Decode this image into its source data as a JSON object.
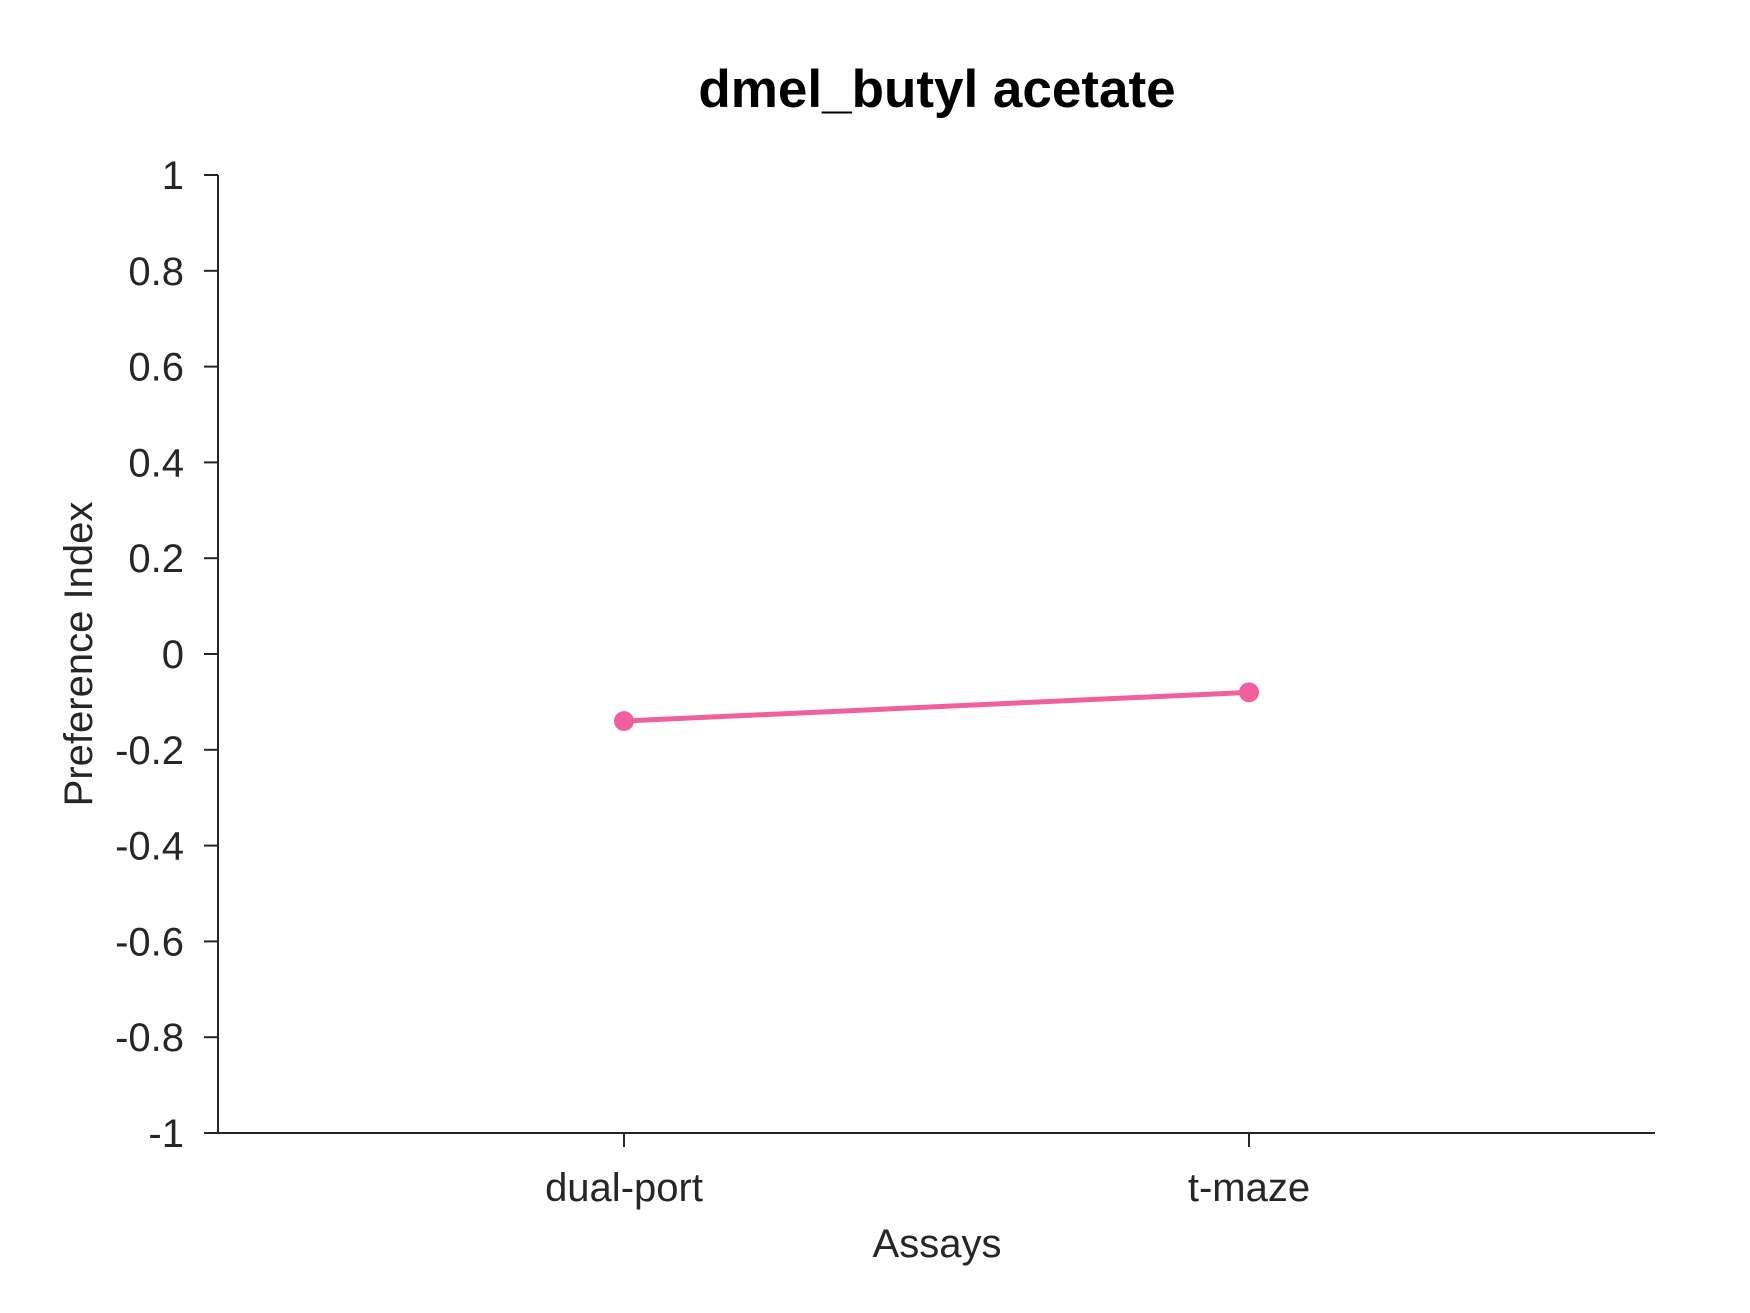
{
  "chart_data": {
    "type": "line",
    "title": "dmel_butyl acetate",
    "xlabel": "Assays",
    "ylabel": "Preference Index",
    "categories": [
      "dual-port",
      "t-maze"
    ],
    "series": [
      {
        "values": [
          -0.14,
          -0.08
        ],
        "color": "#f0609e"
      }
    ],
    "ylim": [
      -1,
      1
    ],
    "yticks": [
      1,
      0.8,
      0.6,
      0.4,
      0.2,
      0,
      -0.2,
      -0.4,
      -0.6,
      -0.8,
      -1
    ],
    "ytick_labels": [
      "1",
      "0.8",
      "0.6",
      "0.4",
      "0.2",
      "0",
      "-0.2",
      "-0.4",
      "-0.6",
      "-0.8",
      "-1"
    ],
    "grid": false,
    "legend": "none"
  }
}
